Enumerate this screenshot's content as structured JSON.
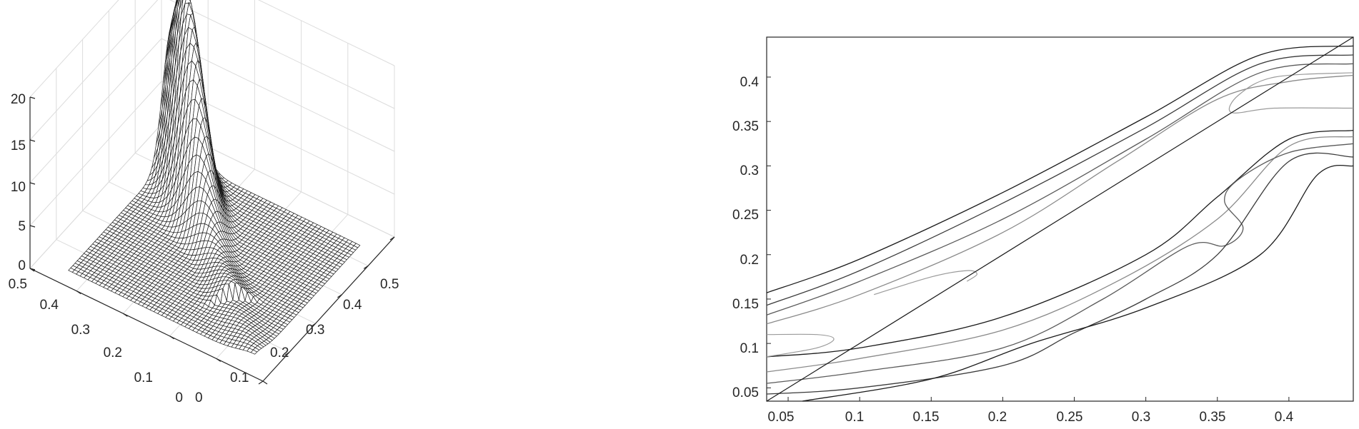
{
  "chart_data": [
    {
      "type": "surface",
      "title": "",
      "xlabel": "",
      "ylabel": "",
      "zlabel": "",
      "xlim": [
        0,
        0.5
      ],
      "ylim": [
        0,
        0.5
      ],
      "zlim": [
        0,
        20
      ],
      "x_ticks": [
        "0",
        "0.1",
        "0.2",
        "0.3",
        "0.4",
        "0.5"
      ],
      "y_ticks": [
        "0",
        "0.1",
        "0.2",
        "0.3",
        "0.4",
        "0.5"
      ],
      "z_ticks": [
        "0",
        "5",
        "10",
        "15",
        "20"
      ],
      "grid": true,
      "surface": {
        "description_free": true,
        "domain": [
          0.04,
          0.44
        ],
        "peak": {
          "x": 0.38,
          "y": 0.38,
          "z": 20.5
        },
        "ridge": "along the diagonal x = y, rising toward the peak"
      }
    },
    {
      "type": "contour",
      "title": "",
      "xlabel": "",
      "ylabel": "",
      "xlim": [
        0.035,
        0.445
      ],
      "ylim": [
        0.035,
        0.445
      ],
      "x_ticks": [
        "0.05",
        "0.1",
        "0.15",
        "0.2",
        "0.25",
        "0.3",
        "0.35",
        "0.4"
      ],
      "y_ticks": [
        "0.05",
        "0.1",
        "0.15",
        "0.2",
        "0.25",
        "0.3",
        "0.35",
        "0.4"
      ],
      "grid": false,
      "reference_line": {
        "from": [
          0.035,
          0.035
        ],
        "to": [
          0.445,
          0.445
        ]
      },
      "upper_contours": [
        [
          [
            0.035,
            0.157
          ],
          [
            0.1,
            0.195
          ],
          [
            0.2,
            0.27
          ],
          [
            0.3,
            0.355
          ],
          [
            0.38,
            0.425
          ],
          [
            0.445,
            0.435
          ]
        ],
        [
          [
            0.035,
            0.143
          ],
          [
            0.1,
            0.182
          ],
          [
            0.2,
            0.258
          ],
          [
            0.3,
            0.343
          ],
          [
            0.38,
            0.415
          ],
          [
            0.445,
            0.425
          ]
        ],
        [
          [
            0.035,
            0.132
          ],
          [
            0.1,
            0.17
          ],
          [
            0.2,
            0.24
          ],
          [
            0.3,
            0.33
          ],
          [
            0.38,
            0.405
          ],
          [
            0.445,
            0.415
          ]
        ],
        [
          [
            0.035,
            0.122
          ],
          [
            0.1,
            0.155
          ],
          [
            0.2,
            0.225
          ],
          [
            0.28,
            0.305
          ],
          [
            0.35,
            0.375
          ],
          [
            0.4,
            0.395
          ],
          [
            0.445,
            0.402
          ]
        ]
      ],
      "lower_contours": [
        [
          [
            0.035,
            0.085
          ],
          [
            0.1,
            0.095
          ],
          [
            0.2,
            0.13
          ],
          [
            0.3,
            0.2
          ],
          [
            0.35,
            0.265
          ],
          [
            0.4,
            0.33
          ],
          [
            0.445,
            0.34
          ]
        ],
        [
          [
            0.035,
            0.068
          ],
          [
            0.1,
            0.083
          ],
          [
            0.2,
            0.115
          ],
          [
            0.28,
            0.17
          ],
          [
            0.35,
            0.24
          ],
          [
            0.4,
            0.322
          ],
          [
            0.445,
            0.333
          ]
        ],
        [
          [
            0.035,
            0.055
          ],
          [
            0.1,
            0.068
          ],
          [
            0.2,
            0.095
          ],
          [
            0.27,
            0.15
          ],
          [
            0.33,
            0.21
          ],
          [
            0.355,
            0.21
          ],
          [
            0.368,
            0.23
          ],
          [
            0.355,
            0.26
          ],
          [
            0.365,
            0.285
          ],
          [
            0.4,
            0.315
          ],
          [
            0.445,
            0.325
          ]
        ],
        [
          [
            0.035,
            0.043
          ],
          [
            0.1,
            0.05
          ],
          [
            0.2,
            0.075
          ],
          [
            0.25,
            0.112
          ],
          [
            0.3,
            0.15
          ],
          [
            0.35,
            0.2
          ],
          [
            0.4,
            0.305
          ],
          [
            0.445,
            0.31
          ]
        ],
        [
          [
            0.06,
            0.035
          ],
          [
            0.15,
            0.06
          ],
          [
            0.22,
            0.1
          ],
          [
            0.3,
            0.14
          ],
          [
            0.38,
            0.2
          ],
          [
            0.42,
            0.29
          ],
          [
            0.445,
            0.3
          ]
        ]
      ],
      "closed_contours": [
        [
          [
            0.035,
            0.11
          ],
          [
            0.07,
            0.11
          ],
          [
            0.082,
            0.105
          ],
          [
            0.07,
            0.095
          ],
          [
            0.035,
            0.085
          ]
        ],
        [
          [
            0.11,
            0.155
          ],
          [
            0.15,
            0.175
          ],
          [
            0.175,
            0.182
          ],
          [
            0.182,
            0.178
          ],
          [
            0.175,
            0.17
          ]
        ],
        [
          [
            0.445,
            0.365
          ],
          [
            0.39,
            0.365
          ],
          [
            0.36,
            0.36
          ],
          [
            0.365,
            0.38
          ],
          [
            0.39,
            0.4
          ],
          [
            0.445,
            0.405
          ]
        ]
      ]
    }
  ]
}
